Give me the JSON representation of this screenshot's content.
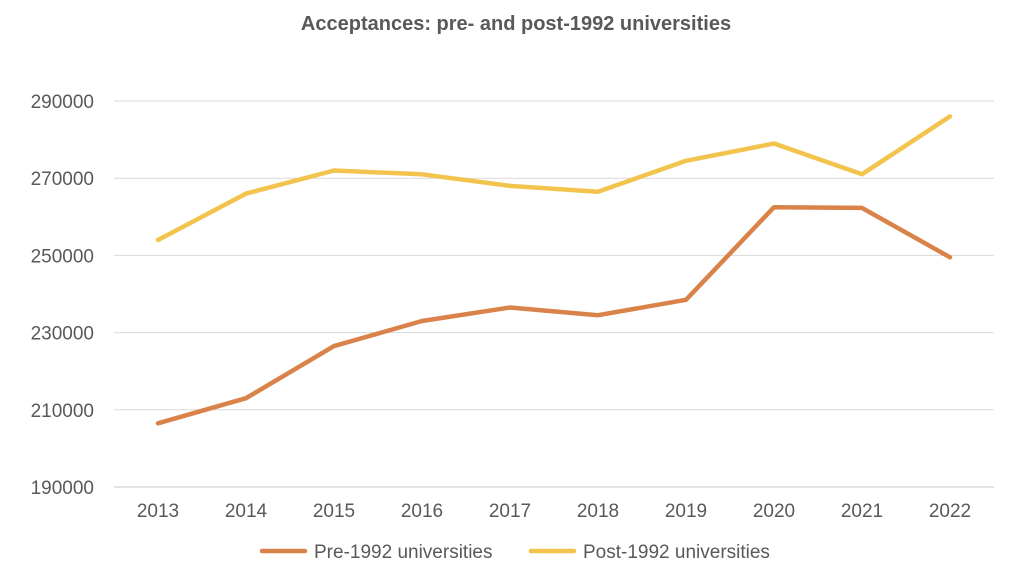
{
  "chart_data": {
    "type": "line",
    "title": "Acceptances: pre- and post-1992 universities",
    "xlabel": "",
    "ylabel": "",
    "categories": [
      "2013",
      "2014",
      "2015",
      "2016",
      "2017",
      "2018",
      "2019",
      "2020",
      "2021",
      "2022"
    ],
    "ylim": [
      190000,
      290000
    ],
    "yticks": [
      "190000",
      "210000",
      "230000",
      "250000",
      "270000",
      "290000"
    ],
    "grid": true,
    "legend_position": "bottom",
    "series": [
      {
        "name": "Pre-1992 universities",
        "color": "#d9834a",
        "values": [
          206500,
          213000,
          226500,
          233000,
          236500,
          234500,
          238500,
          262500,
          262300,
          249500
        ]
      },
      {
        "name": "Post-1992 universities",
        "color": "#f2c44d",
        "values": [
          254000,
          266000,
          272000,
          271000,
          268000,
          266500,
          274500,
          279000,
          271000,
          286000
        ]
      }
    ]
  }
}
